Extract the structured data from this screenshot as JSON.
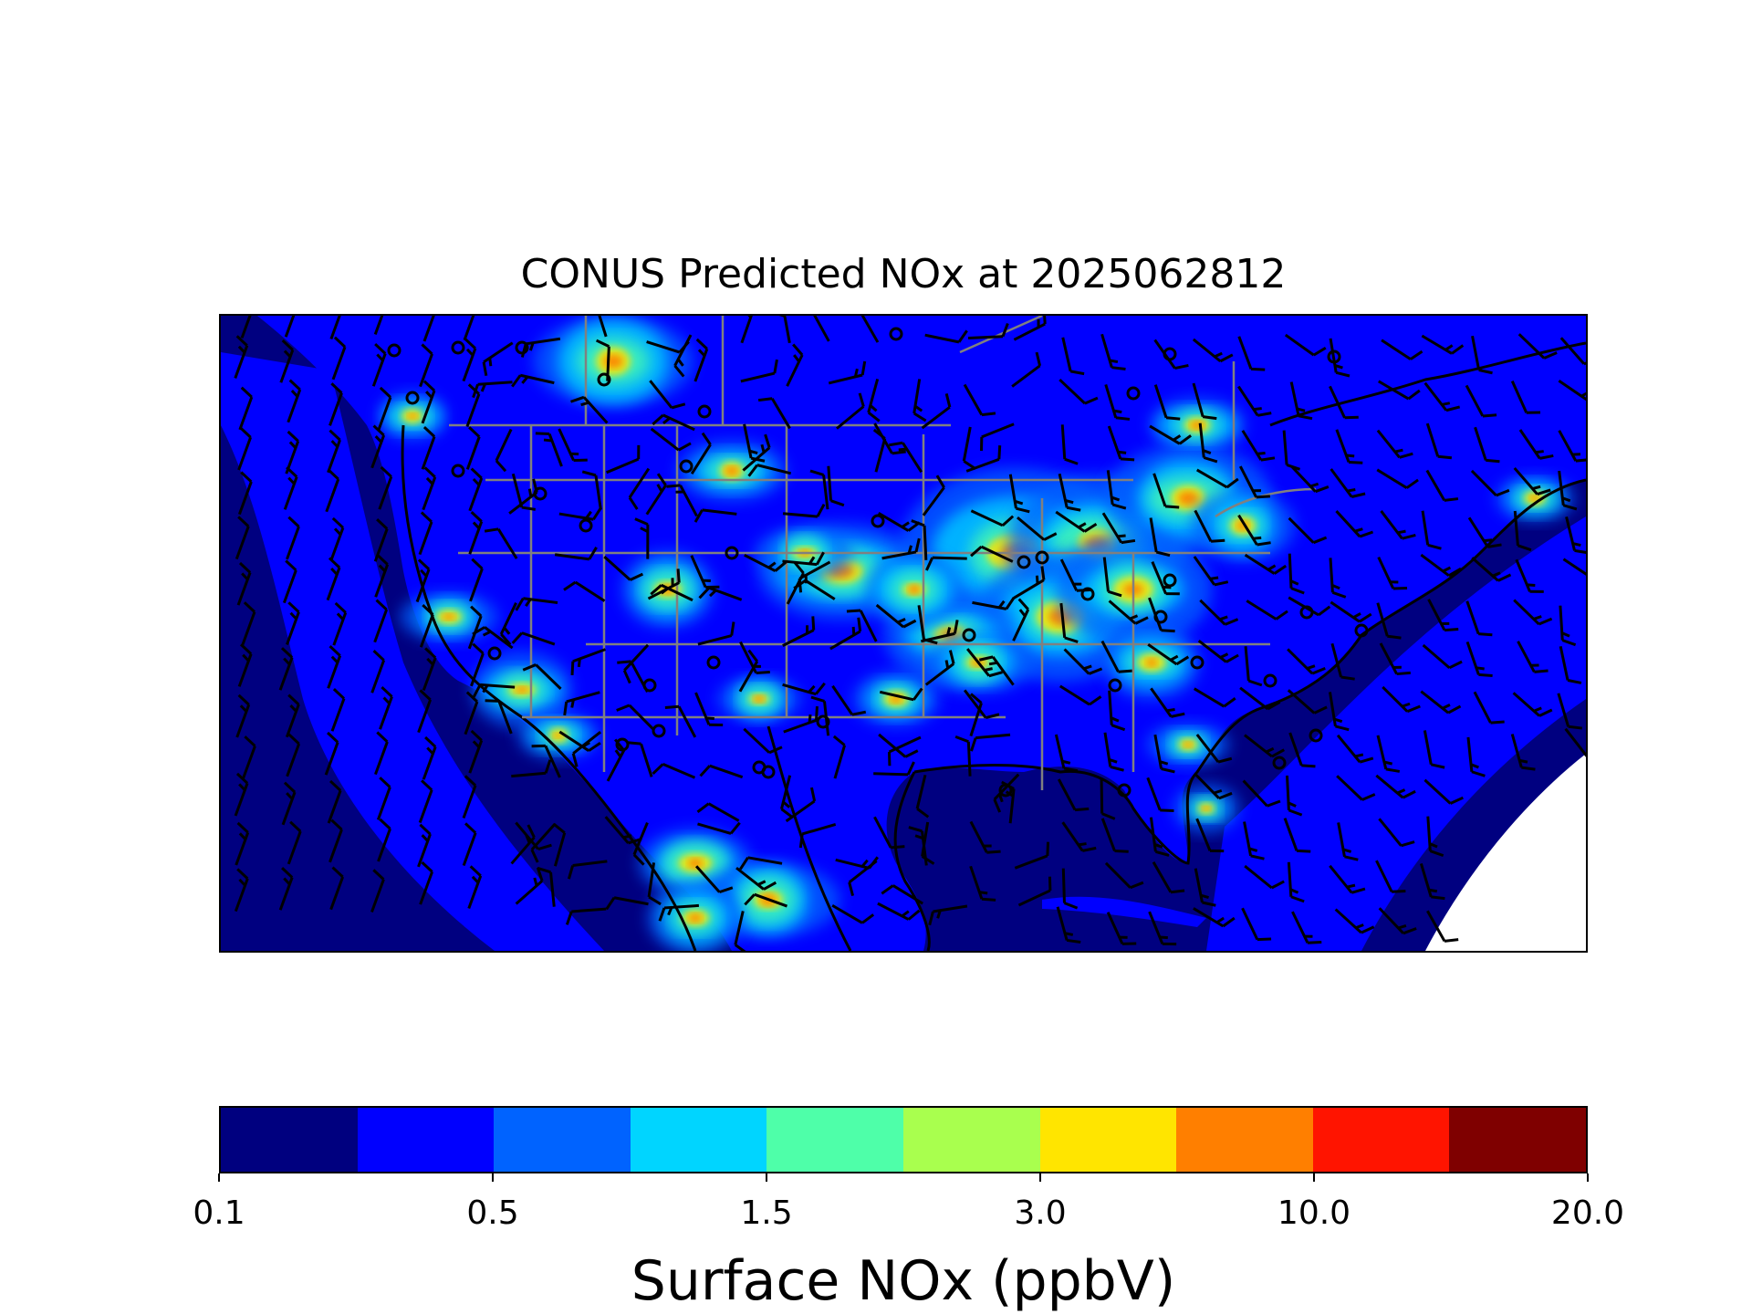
{
  "title": "CONUS Predicted NOx at 2025062812",
  "map": {
    "legend": {
      "label": "Surface NOx (ppbV)",
      "tick_labels": [
        "0.1",
        "0.5",
        "1.5",
        "3.0",
        "10.0",
        "20.0"
      ],
      "colors": [
        "#00007f",
        "#0000ff",
        "#0063ff",
        "#00d5ff",
        "#4effa9",
        "#a9ff4e",
        "#ffe500",
        "#ff7f00",
        "#ff1400",
        "#7f0000"
      ]
    },
    "land_color": "#0000ff",
    "ocean_color": "#000080",
    "border_color": "#808080",
    "coast_color": "#000000",
    "missing_color": "#ffffff"
  }
}
